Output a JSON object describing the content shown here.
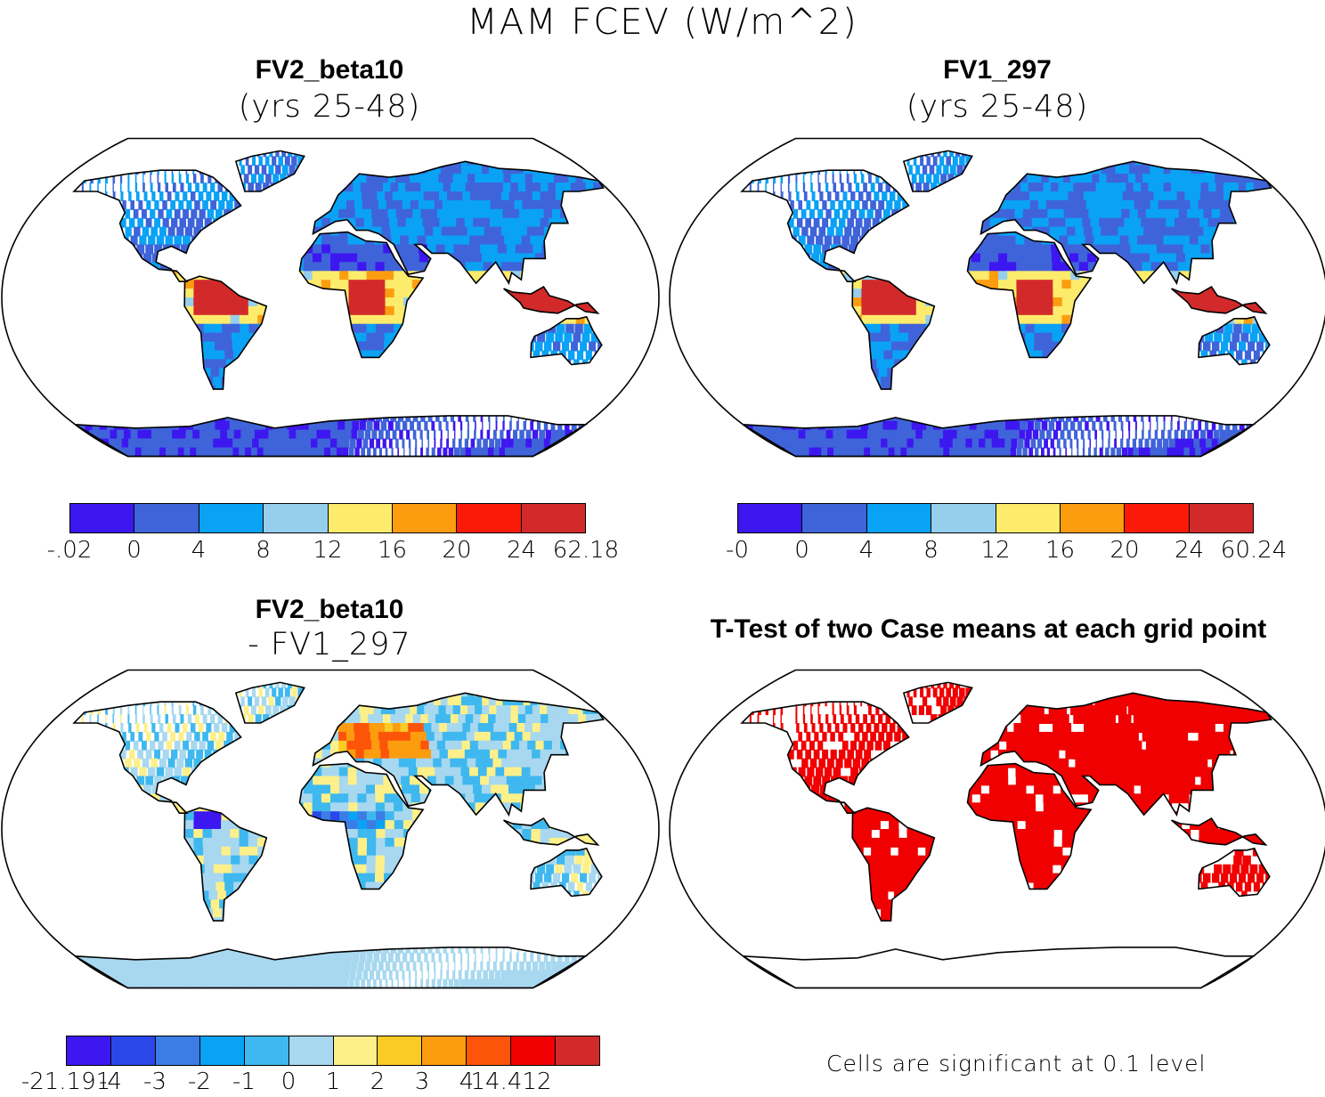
{
  "title": "MAM FCEV (W/m^2)",
  "panels": {
    "top_left": {
      "title": "FV2_beta10",
      "subtitle": "(yrs 25-48)",
      "colors": [
        "#3d17f0",
        "#3f64d9",
        "#0aa2f5",
        "#96cfee",
        "#fdeb6c",
        "#fc9d10",
        "#fb1a08",
        "#d22a2a"
      ],
      "labels": [
        "-.02",
        "0",
        "4",
        "8",
        "12",
        "16",
        "20",
        "24",
        "62.18"
      ]
    },
    "top_right": {
      "title": "FV1_297",
      "subtitle": "(yrs 25-48)",
      "colors": [
        "#3d17f0",
        "#3f64d9",
        "#0aa2f5",
        "#96cfee",
        "#fdeb6c",
        "#fc9d10",
        "#fb1a08",
        "#d22a2a"
      ],
      "labels": [
        "-0",
        "0",
        "4",
        "8",
        "12",
        "16",
        "20",
        "24",
        "60.24"
      ]
    },
    "bottom_left": {
      "title": "FV2_beta10",
      "subtitle": "- FV1_297",
      "colors": [
        "#3d17f0",
        "#2a47e9",
        "#3b7de5",
        "#0aa2f5",
        "#3fb8ef",
        "#a7d8ef",
        "#fdf08a",
        "#fcca25",
        "#fc9d10",
        "#fc5509",
        "#f00000",
        "#d22a2a"
      ],
      "labels": [
        "-21.191",
        "-4",
        "-3",
        "-2",
        "-1",
        "0",
        "1",
        "2",
        "3",
        "4",
        "14.412"
      ]
    },
    "bottom_right": {
      "title": "T-Test of two Case means at each grid point",
      "note": "Cells are significant at 0.1 level",
      "significant_color": "#f00000"
    }
  }
}
